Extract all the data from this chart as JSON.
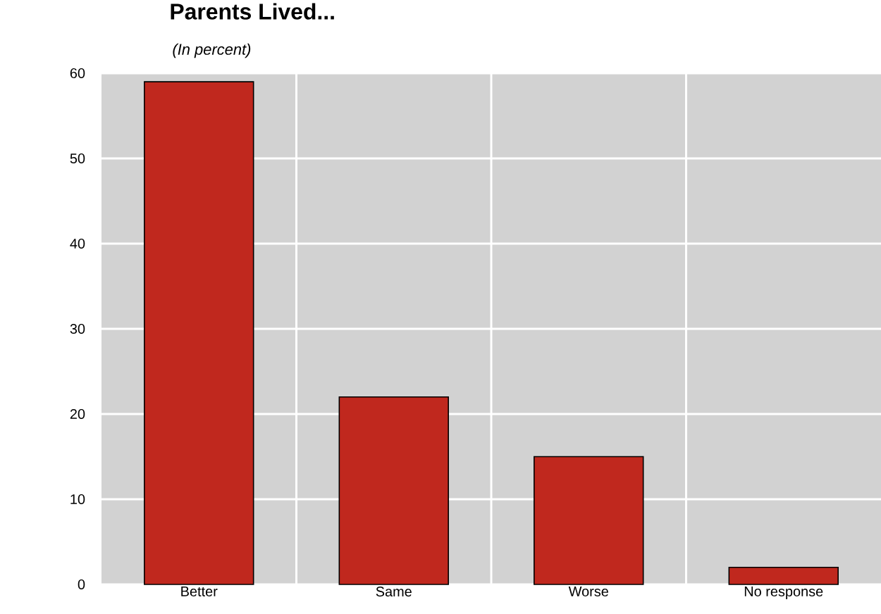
{
  "chart_data": {
    "type": "bar",
    "title": "Parents Lived...",
    "subtitle": "(In percent)",
    "categories": [
      "Better",
      "Same",
      "Worse",
      "No response"
    ],
    "values": [
      59,
      22,
      15,
      2
    ],
    "color": "#c0281e",
    "ylim": [
      0,
      60
    ],
    "yticks": [
      0,
      10,
      20,
      30,
      40,
      50,
      60
    ],
    "grid": true
  }
}
